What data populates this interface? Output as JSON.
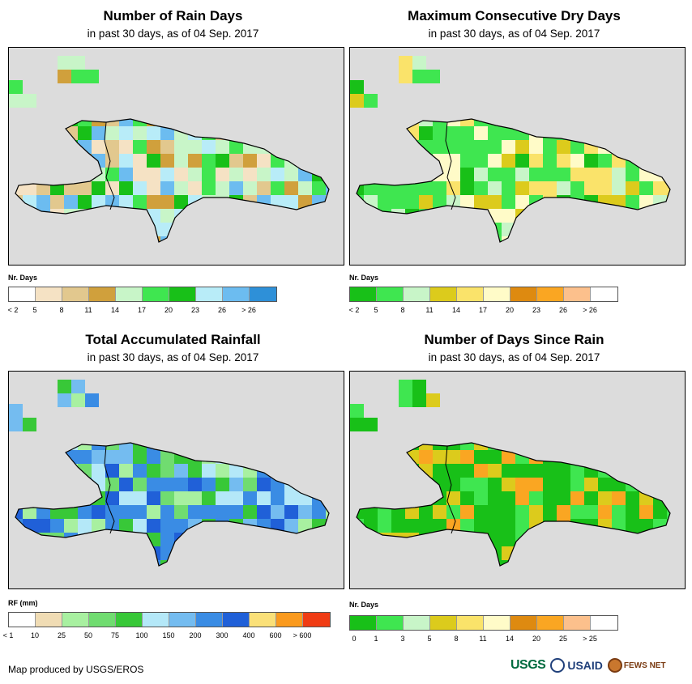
{
  "panels": [
    {
      "id": "rain-days",
      "title": "Number of Rain Days",
      "subtitle": "in past 30 days, as of 04 Sep. 2017",
      "legend_title": "Nr. Days",
      "legend_colors": [
        "#ffffff",
        "#f5e2c4",
        "#e2c88e",
        "#d0a03c",
        "#c8f5c8",
        "#3fe650",
        "#18c018",
        "#b8ecf8",
        "#6cbcf0",
        "#2e90d8"
      ],
      "legend_labels": [
        "< 2",
        "5",
        "8",
        "11",
        "14",
        "17",
        "20",
        "23",
        "26",
        "> 26"
      ]
    },
    {
      "id": "max-dry-days",
      "title": "Maximum Consecutive Dry Days",
      "subtitle": "in past 30 days, as of 04 Sep. 2017",
      "legend_title": "Nr. Days",
      "legend_colors": [
        "#18c018",
        "#3fe650",
        "#c8f5c8",
        "#dccb1c",
        "#fae36a",
        "#fffbc8",
        "#de8a10",
        "#faa622",
        "#fcc08c",
        "#ffffff"
      ],
      "legend_labels": [
        "< 2",
        "5",
        "8",
        "11",
        "14",
        "17",
        "20",
        "23",
        "26",
        "> 26"
      ]
    },
    {
      "id": "total-rainfall",
      "title": "Total Accumulated Rainfall",
      "subtitle": "in past 30 days, as of 04 Sep. 2017",
      "legend_title": "RF (mm)",
      "legend_colors": [
        "#ffffff",
        "#f0dcb4",
        "#a8f0a0",
        "#70dc70",
        "#38c838",
        "#b4e8f8",
        "#74bcf0",
        "#3a8ce4",
        "#2060d8",
        "#fae078",
        "#fa9a1e",
        "#f03c14"
      ],
      "legend_labels": [
        "< 1",
        "10",
        "25",
        "50",
        "75",
        "100",
        "150",
        "200",
        "300",
        "400",
        "600",
        "> 600"
      ]
    },
    {
      "id": "days-since-rain",
      "title": "Number of Days Since Rain",
      "subtitle": "in past 30 days, as of 04 Sep. 2017",
      "legend_title": "Nr. Days",
      "legend_colors": [
        "#18c018",
        "#3fe650",
        "#c8f5c8",
        "#dccb1c",
        "#fae36a",
        "#fffbc8",
        "#de8a10",
        "#faa622",
        "#fcc08c",
        "#ffffff"
      ],
      "legend_labels": [
        "0",
        "1",
        "3",
        "5",
        "8",
        "11",
        "14",
        "20",
        "25",
        "> 25"
      ]
    }
  ],
  "credit": "Map produced by USGS/EROS",
  "logos": {
    "usgs": "USGS",
    "usaid": "USAID",
    "fews": "FEWS NET"
  }
}
